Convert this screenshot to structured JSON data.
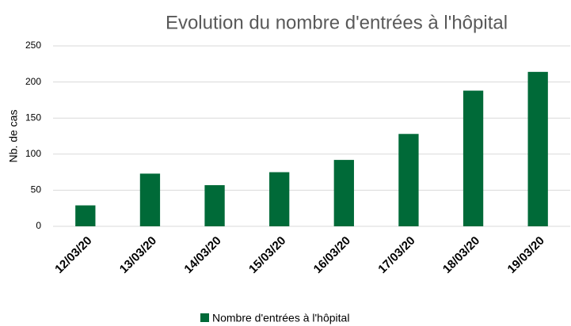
{
  "chart_data": {
    "type": "bar",
    "title": "Evolution du nombre d'entrées à l'hôpital",
    "y_label": "Nb. de cas",
    "categories": [
      "12/03/20",
      "13/03/20",
      "14/03/20",
      "15/03/20",
      "16/03/20",
      "17/03/20",
      "18/03/20",
      "19/03/20"
    ],
    "series": [
      {
        "name": "Nombre d'entrées à l'hôpital",
        "color": "#006a38",
        "values": [
          29,
          73,
          57,
          75,
          92,
          128,
          188,
          214
        ]
      }
    ],
    "ylim": [
      0,
      250
    ],
    "yticks": [
      0,
      50,
      100,
      150,
      200,
      250
    ],
    "grid": true,
    "legend": "bottom"
  }
}
